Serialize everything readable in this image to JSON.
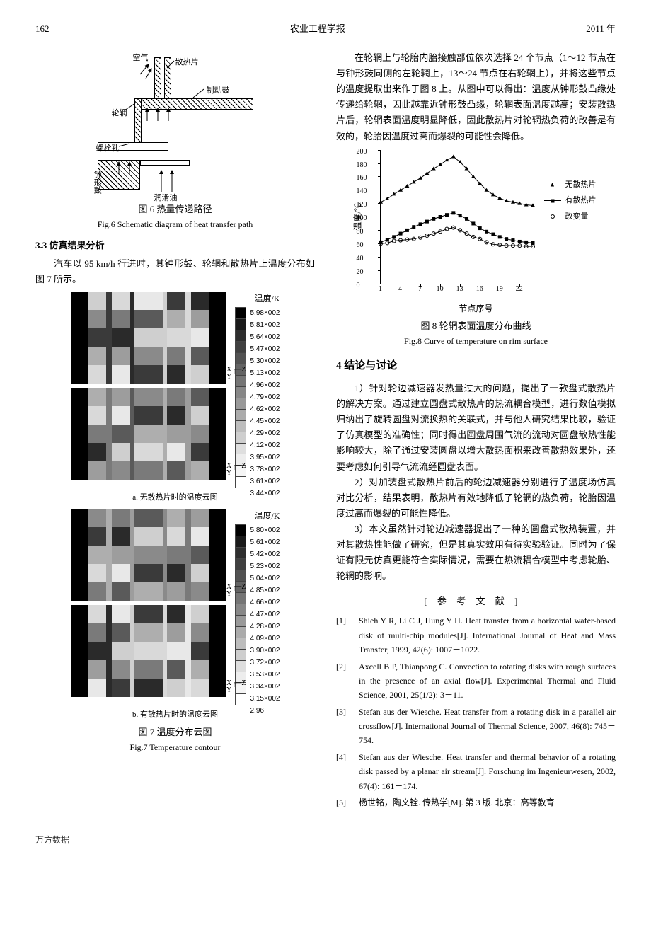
{
  "header": {
    "page_num": "162",
    "journal": "农业工程学报",
    "year": "2011 年"
  },
  "fig6": {
    "labels": {
      "air": "空气",
      "fin": "散热片",
      "drum": "制动鼓",
      "rim": "轮辋",
      "bolt": "螺栓孔",
      "bell": "钟形鼓",
      "oil": "润滑油"
    },
    "caption_cn": "图 6  热量传递路径",
    "caption_en": "Fig.6  Schematic diagram of heat transfer path"
  },
  "sec3_3": {
    "heading": "3.3  仿真结果分析",
    "p1": "汽车以 95 km/h 行进时，其钟形鼓、轮辋和散热片上温度分布如图 7 所示。"
  },
  "fig7": {
    "cbar_title": "温度/K",
    "sub_a": "a. 无散热片时的温度云图",
    "sub_b": "b. 有散热片时的温度云图",
    "caption_cn": "图 7  温度分布云图",
    "caption_en": "Fig.7  Temperature contour",
    "axis": {
      "x": "X",
      "y": "Y",
      "z": "Z"
    },
    "cbar_a": {
      "labels": [
        "5.98×002",
        "5.81×002",
        "5.64×002",
        "5.47×002",
        "5.30×002",
        "5.13×002",
        "4.96×002",
        "4.79×002",
        "4.62×002",
        "4.45×002",
        "4.29×002",
        "4.12×002",
        "3.95×002",
        "3.78×002",
        "3.61×002",
        "3.44×002"
      ],
      "colors": [
        "#000000",
        "#1a1a1a",
        "#2e2e2e",
        "#404040",
        "#525252",
        "#636363",
        "#757575",
        "#878787",
        "#999999",
        "#ababab",
        "#bdbdbd",
        "#cecece",
        "#dedede",
        "#ededed",
        "#f5f5f5",
        "#ffffff"
      ]
    },
    "cbar_b": {
      "labels": [
        "5.80×002",
        "5.61×002",
        "5.42×002",
        "5.23×002",
        "5.04×002",
        "4.85×002",
        "4.66×002",
        "4.47×002",
        "4.28×002",
        "4.09×002",
        "3.90×002",
        "3.72×002",
        "3.53×002",
        "3.34×002",
        "3.15×002",
        "2.96"
      ],
      "colors": [
        "#000000",
        "#1a1a1a",
        "#2e2e2e",
        "#404040",
        "#525252",
        "#636363",
        "#757575",
        "#878787",
        "#999999",
        "#ababab",
        "#bdbdbd",
        "#cecece",
        "#dedede",
        "#ededed",
        "#f5f5f5",
        "#ffffff"
      ]
    },
    "band_colors": [
      "#cfcfcf",
      "#8a8a8a",
      "#3a3a3a",
      "#aeaeae",
      "#d9d9d9",
      "#7a7a7a",
      "#2a2a2a",
      "#9d9d9d",
      "#e8e8e8",
      "#5a5a5a"
    ]
  },
  "right_intro": "在轮辋上与轮胎内胎接触部位依次选择 24 个节点（1～12 节点在与钟形鼓同侧的左轮辋上，13～24 节点在右轮辋上），并将这些节点的温度提取出来作于图 8 上。从图中可以得出：温度从钟形鼓凸缘处传递给轮辋，因此越靠近钟形鼓凸缘，轮辋表面温度越高；安装散热片后，轮辋表面温度明显降低，因此散热片对轮辋热负荷的改善是有效的，轮胎因温度过高而爆裂的可能性会降低。",
  "fig8": {
    "ylabel": "温度/℃",
    "xlabel": "节点序号",
    "yticks": [
      0,
      20,
      40,
      60,
      80,
      100,
      120,
      140,
      160,
      180,
      200
    ],
    "xticks": [
      1,
      4,
      7,
      10,
      13,
      16,
      19,
      22
    ],
    "ymax": 200,
    "xmin": 1,
    "xmax": 24,
    "legend": {
      "s1": "无散热片",
      "s2": "有散热片",
      "s3": "改变量"
    },
    "series1": [
      122,
      127,
      134,
      140,
      146,
      152,
      158,
      165,
      172,
      178,
      185,
      190,
      182,
      172,
      160,
      150,
      140,
      133,
      128,
      124,
      122,
      120,
      118,
      117
    ],
    "series2": [
      62,
      66,
      70,
      75,
      80,
      85,
      89,
      93,
      97,
      100,
      103,
      106,
      102,
      97,
      90,
      83,
      78,
      74,
      70,
      67,
      65,
      63,
      62,
      61
    ],
    "series3": [
      60,
      61,
      64,
      65,
      66,
      67,
      69,
      72,
      75,
      78,
      82,
      84,
      80,
      75,
      70,
      67,
      62,
      59,
      58,
      57,
      57,
      57,
      56,
      56
    ],
    "caption_cn": "图 8  轮辋表面温度分布曲线",
    "caption_en": "Fig.8  Curve of temperature on rim surface"
  },
  "sec4": {
    "heading": "4  结论与讨论",
    "p1": "1）针对轮边减速器发热量过大的问题，提出了一款盘式散热片的解决方案。通过建立圆盘式散热片的热流耦合模型，进行数值模拟归纳出了旋转圆盘对流换热的关联式，并与他人研究结果比较，验证了仿真模型的准确性；同时得出圆盘周围气流的流动对圆盘散热性能影响较大，除了通过安装圆盘以增大散热面积来改善散热效果外，还要考虑如何引导气流流经圆盘表面。",
    "p2": "2）对加装盘式散热片前后的轮边减速器分别进行了温度场仿真对比分析，结果表明，散热片有效地降低了轮辋的热负荷，轮胎因温度过高而爆裂的可能性降低。",
    "p3": "3）本文虽然针对轮边减速器提出了一种的圆盘式散热装置，并对其散热性能做了研究，但是其真实效用有待实验验证。同时为了保证有限元仿真更能符合实际情况，需要在热流耦合模型中考虑轮胎、轮辋的影响。"
  },
  "refs": {
    "heading": "[参考文献]",
    "items": [
      {
        "n": "[1]",
        "t": "Shieh Y R, Li C J, Hung Y H. Heat transfer from a horizontal wafer-based disk of multi-chip modules[J]. International Journal of Heat and Mass Transfer, 1999, 42(6): 1007－1022."
      },
      {
        "n": "[2]",
        "t": "Axcell B P, Thianpong C. Convection to rotating disks with rough surfaces in the presence of an axial flow[J]. Experimental Thermal and Fluid Science, 2001, 25(1/2): 3－11."
      },
      {
        "n": "[3]",
        "t": "Stefan aus der Wiesche. Heat transfer from a rotating disk in a parallel air crossflow[J]. International Journal of Thermal Science, 2007, 46(8): 745－754."
      },
      {
        "n": "[4]",
        "t": "Stefan aus der Wiesche. Heat transfer and thermal behavior of a rotating disk passed by a planar air stream[J]. Forschung im Ingenieurwesen, 2002, 67(4): 161－174."
      },
      {
        "n": "[5]",
        "t": "杨世铭，陶文铨. 传热学[M]. 第 3 版. 北京：高等教育"
      }
    ]
  },
  "footer": "万方数据"
}
